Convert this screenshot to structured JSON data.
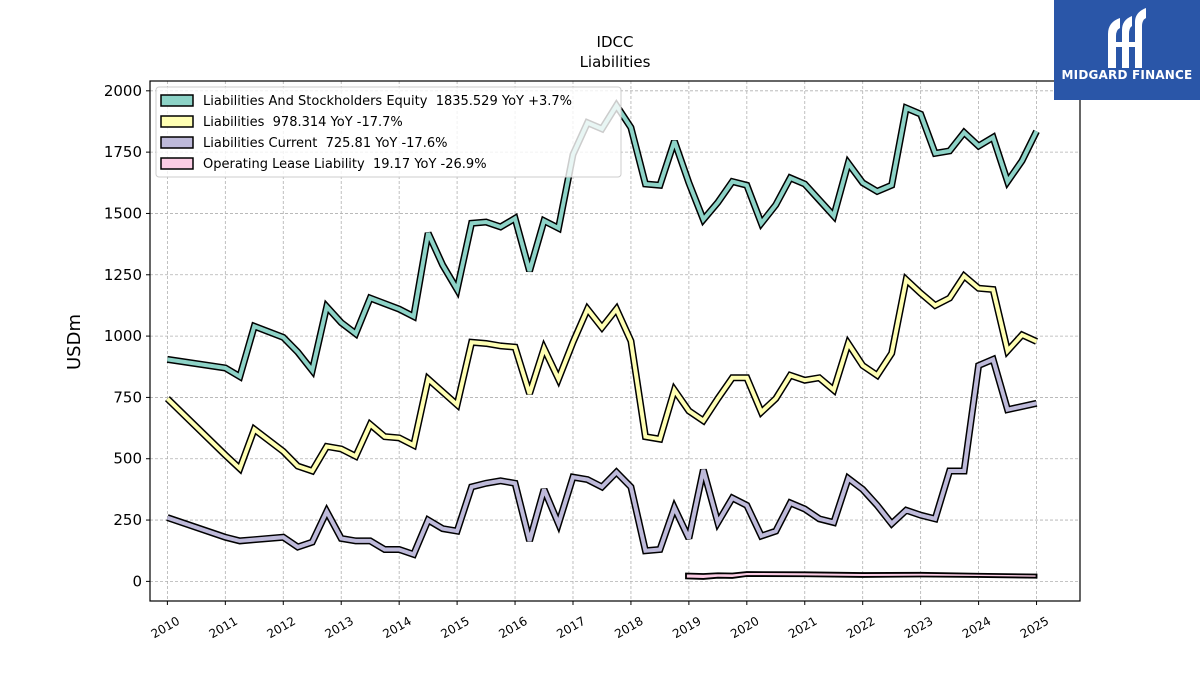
{
  "brand": {
    "name": "MIDGARD FINANCE",
    "bg_color": "#2a56a8"
  },
  "chart_data": {
    "type": "line",
    "title": "IDCC",
    "subtitle": "Liabilities",
    "xlabel": "",
    "ylabel": "USDm",
    "xlim": [
      2009.7,
      2025.75
    ],
    "ylim": [
      -80,
      2040
    ],
    "yticks": [
      0,
      250,
      500,
      750,
      1000,
      1250,
      1500,
      1750,
      2000
    ],
    "xticks": [
      "2010",
      "2011",
      "2012",
      "2013",
      "2014",
      "2015",
      "2016",
      "2017",
      "2018",
      "2019",
      "2020",
      "2021",
      "2022",
      "2023",
      "2024",
      "2025"
    ],
    "grid": true,
    "legend_position": "top-left",
    "series": [
      {
        "name": "Liabilities And Stockholders Equity",
        "legend": "Liabilities And Stockholders Equity  1835.529 YoY +3.7%",
        "color": "#8dd3c7",
        "points": [
          [
            2010.0,
            905
          ],
          [
            2011.0,
            870
          ],
          [
            2011.25,
            835
          ],
          [
            2011.5,
            1040
          ],
          [
            2012.0,
            995
          ],
          [
            2012.25,
            935
          ],
          [
            2012.5,
            860
          ],
          [
            2012.75,
            1120
          ],
          [
            2013.0,
            1055
          ],
          [
            2013.25,
            1010
          ],
          [
            2013.5,
            1155
          ],
          [
            2014.0,
            1110
          ],
          [
            2014.25,
            1080
          ],
          [
            2014.5,
            1420
          ],
          [
            2014.75,
            1290
          ],
          [
            2015.0,
            1190
          ],
          [
            2015.25,
            1460
          ],
          [
            2015.5,
            1465
          ],
          [
            2015.75,
            1445
          ],
          [
            2016.0,
            1480
          ],
          [
            2016.25,
            1265
          ],
          [
            2016.5,
            1470
          ],
          [
            2016.75,
            1440
          ],
          [
            2017.0,
            1740
          ],
          [
            2017.25,
            1870
          ],
          [
            2017.5,
            1845
          ],
          [
            2017.75,
            1940
          ],
          [
            2018.0,
            1850
          ],
          [
            2018.25,
            1620
          ],
          [
            2018.5,
            1615
          ],
          [
            2018.75,
            1795
          ],
          [
            2019.0,
            1625
          ],
          [
            2019.25,
            1475
          ],
          [
            2019.5,
            1545
          ],
          [
            2019.75,
            1630
          ],
          [
            2020.0,
            1615
          ],
          [
            2020.25,
            1460
          ],
          [
            2020.5,
            1535
          ],
          [
            2020.75,
            1645
          ],
          [
            2021.0,
            1620
          ],
          [
            2021.25,
            1555
          ],
          [
            2021.5,
            1490
          ],
          [
            2021.75,
            1705
          ],
          [
            2022.0,
            1625
          ],
          [
            2022.25,
            1590
          ],
          [
            2022.5,
            1615
          ],
          [
            2022.75,
            1930
          ],
          [
            2023.0,
            1905
          ],
          [
            2023.25,
            1745
          ],
          [
            2023.5,
            1755
          ],
          [
            2023.75,
            1830
          ],
          [
            2024.0,
            1775
          ],
          [
            2024.25,
            1810
          ],
          [
            2024.5,
            1630
          ],
          [
            2024.75,
            1715
          ],
          [
            2025.0,
            1835
          ]
        ]
      },
      {
        "name": "Liabilities",
        "legend": "Liabilities  978.314 YoY -17.7%",
        "color": "#ffffb3",
        "points": [
          [
            2010.0,
            745
          ],
          [
            2011.0,
            515
          ],
          [
            2011.25,
            460
          ],
          [
            2011.5,
            620
          ],
          [
            2012.0,
            530
          ],
          [
            2012.25,
            470
          ],
          [
            2012.5,
            450
          ],
          [
            2012.75,
            550
          ],
          [
            2013.0,
            540
          ],
          [
            2013.25,
            510
          ],
          [
            2013.5,
            640
          ],
          [
            2013.75,
            590
          ],
          [
            2014.0,
            585
          ],
          [
            2014.25,
            555
          ],
          [
            2014.5,
            825
          ],
          [
            2015.0,
            720
          ],
          [
            2015.25,
            975
          ],
          [
            2015.5,
            970
          ],
          [
            2015.75,
            960
          ],
          [
            2016.0,
            955
          ],
          [
            2016.25,
            765
          ],
          [
            2016.5,
            950
          ],
          [
            2016.75,
            825
          ],
          [
            2017.0,
            975
          ],
          [
            2017.25,
            1110
          ],
          [
            2017.5,
            1035
          ],
          [
            2017.75,
            1110
          ],
          [
            2018.0,
            980
          ],
          [
            2018.25,
            590
          ],
          [
            2018.5,
            580
          ],
          [
            2018.75,
            780
          ],
          [
            2019.0,
            695
          ],
          [
            2019.25,
            655
          ],
          [
            2019.5,
            745
          ],
          [
            2019.75,
            830
          ],
          [
            2020.0,
            830
          ],
          [
            2020.25,
            690
          ],
          [
            2020.5,
            745
          ],
          [
            2020.75,
            840
          ],
          [
            2021.0,
            820
          ],
          [
            2021.25,
            830
          ],
          [
            2021.5,
            780
          ],
          [
            2021.75,
            970
          ],
          [
            2022.0,
            880
          ],
          [
            2022.25,
            840
          ],
          [
            2022.5,
            930
          ],
          [
            2022.75,
            1230
          ],
          [
            2023.0,
            1175
          ],
          [
            2023.25,
            1125
          ],
          [
            2023.5,
            1155
          ],
          [
            2023.75,
            1245
          ],
          [
            2024.0,
            1195
          ],
          [
            2024.25,
            1190
          ],
          [
            2024.5,
            940
          ],
          [
            2024.75,
            1005
          ],
          [
            2025.0,
            978
          ]
        ]
      },
      {
        "name": "Liabilities Current",
        "legend": "Liabilities Current  725.81 YoY -17.6%",
        "color": "#bebada",
        "points": [
          [
            2010.0,
            260
          ],
          [
            2011.0,
            180
          ],
          [
            2011.25,
            165
          ],
          [
            2011.5,
            170
          ],
          [
            2012.0,
            180
          ],
          [
            2012.25,
            140
          ],
          [
            2012.5,
            160
          ],
          [
            2012.75,
            285
          ],
          [
            2013.0,
            175
          ],
          [
            2013.25,
            165
          ],
          [
            2013.5,
            165
          ],
          [
            2013.75,
            130
          ],
          [
            2014.0,
            130
          ],
          [
            2014.25,
            110
          ],
          [
            2014.5,
            250
          ],
          [
            2014.75,
            215
          ],
          [
            2015.0,
            205
          ],
          [
            2015.25,
            385
          ],
          [
            2015.5,
            400
          ],
          [
            2015.75,
            410
          ],
          [
            2016.0,
            400
          ],
          [
            2016.25,
            165
          ],
          [
            2016.5,
            375
          ],
          [
            2016.75,
            235
          ],
          [
            2017.0,
            425
          ],
          [
            2017.25,
            415
          ],
          [
            2017.5,
            385
          ],
          [
            2017.75,
            445
          ],
          [
            2018.0,
            385
          ],
          [
            2018.25,
            125
          ],
          [
            2018.5,
            130
          ],
          [
            2018.75,
            300
          ],
          [
            2019.0,
            175
          ],
          [
            2019.25,
            455
          ],
          [
            2019.5,
            240
          ],
          [
            2019.75,
            340
          ],
          [
            2020.0,
            310
          ],
          [
            2020.25,
            185
          ],
          [
            2020.5,
            205
          ],
          [
            2020.75,
            320
          ],
          [
            2021.0,
            295
          ],
          [
            2021.25,
            255
          ],
          [
            2021.5,
            240
          ],
          [
            2021.75,
            420
          ],
          [
            2022.0,
            375
          ],
          [
            2022.25,
            310
          ],
          [
            2022.5,
            235
          ],
          [
            2022.75,
            290
          ],
          [
            2023.0,
            270
          ],
          [
            2023.25,
            255
          ],
          [
            2023.5,
            450
          ],
          [
            2023.75,
            450
          ],
          [
            2024.0,
            880
          ],
          [
            2024.25,
            905
          ],
          [
            2024.5,
            700
          ],
          [
            2025.0,
            726
          ]
        ]
      },
      {
        "name": "Operating Lease Liability",
        "legend": "Operating Lease Liability  19.17 YoY -26.9%",
        "color": "#fccde5",
        "band": [
          [
            2018.95,
            12,
            32
          ],
          [
            2019.25,
            10,
            30
          ],
          [
            2019.5,
            15,
            33
          ],
          [
            2019.75,
            14,
            32
          ],
          [
            2020.0,
            22,
            38
          ],
          [
            2021.0,
            21,
            37
          ],
          [
            2022.0,
            18,
            34
          ],
          [
            2023.0,
            20,
            35
          ],
          [
            2024.0,
            18,
            31
          ],
          [
            2025.0,
            15,
            28
          ]
        ]
      }
    ]
  }
}
